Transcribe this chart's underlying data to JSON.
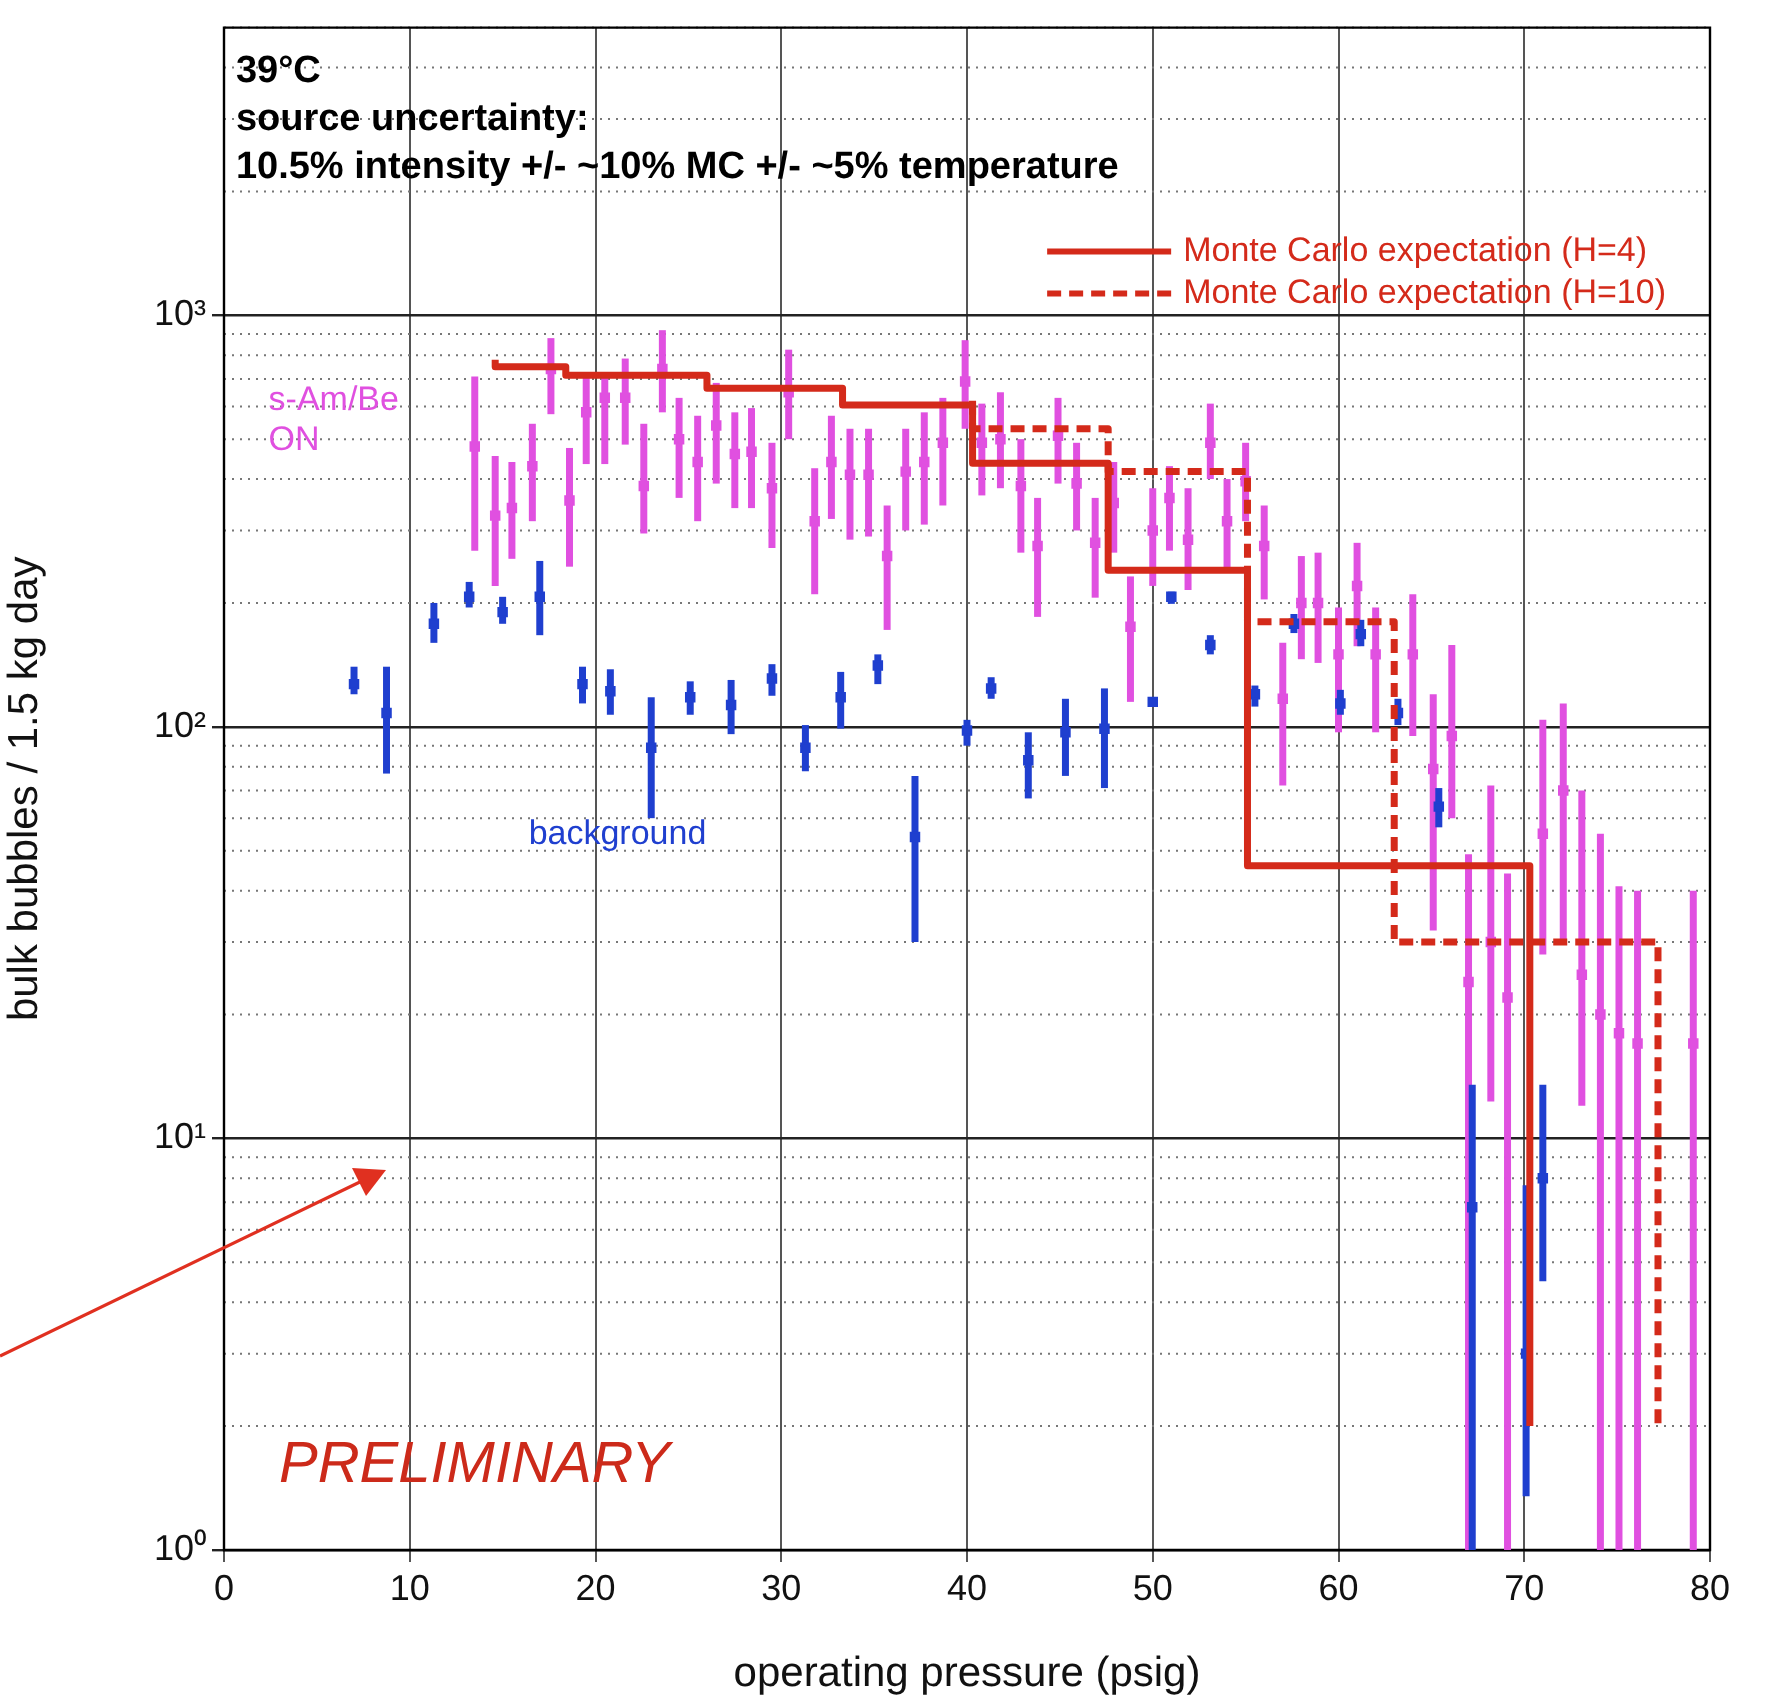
{
  "chart_data": {
    "type": "scatter",
    "xlabel": "operating pressure (psig)",
    "ylabel": "bulk bubbles / 1.5 kg day",
    "annotations": [
      "39°C",
      "source uncertainty:",
      "10.5% intensity +/- ~10% MC +/- ~5% temperature",
      "PRELIMINARY"
    ],
    "xlim": [
      0,
      80
    ],
    "xticks": [
      0,
      10,
      20,
      30,
      40,
      50,
      60,
      70,
      80
    ],
    "ylim": [
      1,
      5000
    ],
    "yticks": [
      {
        "value": 1,
        "label": "10⁰"
      },
      {
        "value": 10,
        "label": "10¹"
      },
      {
        "value": 100,
        "label": "10²"
      },
      {
        "value": 1000,
        "label": "10³"
      }
    ],
    "log": true,
    "grid": true,
    "legend": "top right",
    "series": [
      {
        "name": "s-Am/Be ON",
        "marker": "square",
        "color": "#e050e0",
        "x": [
          13.5,
          14.6,
          15.5,
          16.6,
          17.6,
          18.6,
          19.5,
          20.5,
          21.6,
          22.6,
          23.6,
          24.5,
          25.5,
          26.5,
          27.5,
          28.4,
          29.5,
          30.4,
          31.8,
          32.7,
          33.7,
          34.7,
          35.7,
          36.7,
          37.7,
          38.7,
          39.9,
          40.8,
          41.8,
          42.9,
          43.8,
          44.9,
          45.9,
          46.9,
          47.9,
          48.8,
          50.0,
          50.9,
          51.9,
          53.1,
          54.0,
          55.0,
          56.0,
          57.0,
          58.0,
          58.9,
          60.0,
          61.0,
          62.0,
          64.0,
          65.1,
          66.1,
          67.0,
          68.2,
          69.1,
          71.0,
          72.1,
          73.1,
          74.1,
          75.1,
          76.1,
          79.1
        ],
        "values": [
          480,
          326,
          340,
          430,
          740,
          355,
          581,
          630,
          630,
          385,
          740,
          500,
          440,
          540,
          460,
          466,
          380,
          650,
          316,
          440,
          410,
          410,
          260,
          417,
          440,
          490,
          690,
          490,
          500,
          385,
          275,
          510,
          390,
          280,
          350,
          175,
          300,
          360,
          285,
          490,
          316,
          395,
          275,
          117,
          200,
          200,
          150,
          220,
          150,
          150,
          79,
          95,
          24,
          30,
          22,
          55,
          70,
          25,
          20,
          18,
          17,
          17
        ],
        "errors": [
          [
            268,
            710
          ],
          [
            220,
            455
          ],
          [
            256,
            440
          ],
          [
            316,
            545
          ],
          [
            575,
            880
          ],
          [
            245,
            476
          ],
          [
            435,
            726
          ],
          [
            435,
            720
          ],
          [
            485,
            785
          ],
          [
            295,
            545
          ],
          [
            581,
            920
          ],
          [
            360,
            630
          ],
          [
            316,
            570
          ],
          [
            390,
            685
          ],
          [
            340,
            581
          ],
          [
            340,
            595
          ],
          [
            272,
            490
          ],
          [
            500,
            825
          ],
          [
            210,
            425
          ],
          [
            320,
            570
          ],
          [
            285,
            530
          ],
          [
            290,
            530
          ],
          [
            172,
            345
          ],
          [
            300,
            530
          ],
          [
            310,
            581
          ],
          [
            345,
            630
          ],
          [
            530,
            870
          ],
          [
            365,
            610
          ],
          [
            380,
            650
          ],
          [
            265,
            500
          ],
          [
            185,
            360
          ],
          [
            390,
            630
          ],
          [
            300,
            490
          ],
          [
            206,
            360
          ],
          [
            265,
            440
          ],
          [
            115,
            232
          ],
          [
            220,
            380
          ],
          [
            268,
            430
          ],
          [
            215,
            380
          ],
          [
            400,
            610
          ],
          [
            240,
            400
          ],
          [
            316,
            490
          ],
          [
            204,
            345
          ],
          [
            72,
            160
          ],
          [
            146,
            260
          ],
          [
            143,
            265
          ],
          [
            97,
            195
          ],
          [
            157,
            280
          ],
          [
            97,
            195
          ],
          [
            95,
            210
          ],
          [
            32,
            120
          ],
          [
            60,
            158
          ],
          [
            1,
            49
          ],
          [
            12.3,
            72
          ],
          [
            1,
            44
          ],
          [
            28,
            104
          ],
          [
            30,
            114
          ],
          [
            12,
            70
          ],
          [
            1,
            55
          ],
          [
            1,
            41
          ],
          [
            1,
            40
          ],
          [
            1,
            40
          ]
        ]
      },
      {
        "name": "background",
        "marker": "square",
        "color": "#1f3fcf",
        "x": [
          7.0,
          8.75,
          11.3,
          13.2,
          15.0,
          17.0,
          19.3,
          20.8,
          23.0,
          25.1,
          27.3,
          29.5,
          31.3,
          33.2,
          35.2,
          37.2,
          40.0,
          41.3,
          43.3,
          45.3,
          47.4,
          50.0,
          51.0,
          53.1,
          55.5,
          57.6,
          60.1,
          61.2,
          63.2,
          65.4,
          67.2,
          70.1,
          71.0
        ],
        "values": [
          127,
          108,
          178,
          207,
          190,
          207,
          127,
          122,
          89,
          118,
          113,
          131,
          89,
          118,
          141,
          54,
          98,
          124,
          83,
          97,
          99,
          115,
          207,
          158,
          120,
          178,
          114,
          168,
          108,
          64,
          6.8,
          3,
          8
        ],
        "errors": [
          [
            120,
            140
          ],
          [
            77,
            140
          ],
          [
            160,
            200
          ],
          [
            195,
            225
          ],
          [
            178,
            207
          ],
          [
            167,
            253
          ],
          [
            114,
            140
          ],
          [
            107,
            138
          ],
          [
            60,
            118
          ],
          [
            107,
            129
          ],
          [
            96,
            130
          ],
          [
            119,
            142
          ],
          [
            78,
            101
          ],
          [
            99,
            136
          ],
          [
            127,
            150
          ],
          [
            30,
            76
          ],
          [
            90,
            104
          ],
          [
            117,
            132
          ],
          [
            67,
            97
          ],
          [
            76,
            117
          ],
          [
            71,
            124
          ],
          [
            112,
            117
          ],
          [
            199,
            213
          ],
          [
            150,
            167
          ],
          [
            112,
            126
          ],
          [
            169,
            188
          ],
          [
            107,
            123
          ],
          [
            157,
            182
          ],
          [
            101,
            117
          ],
          [
            57,
            71
          ],
          [
            1,
            13.5
          ],
          [
            1.35,
            7.7
          ],
          [
            4.5,
            13.5
          ]
        ]
      },
      {
        "name": "Monte Carlo expectation (H=4)",
        "type": "step",
        "color": "#d42a1a",
        "line_style": "solid",
        "x": [
          14.6,
          18.4,
          26.0,
          33.3,
          40.3,
          47.6,
          55.1,
          62.9,
          70.3,
          70.3
        ],
        "values": [
          780,
          750,
          715,
          665,
          605,
          437,
          240,
          46,
          46,
          2
        ]
      },
      {
        "name": "Monte Carlo expectation (H=10)",
        "type": "step",
        "color": "#d42a1a",
        "line_style": "dashed",
        "x": [
          40.3,
          47.6,
          55.1,
          63.0,
          70.4,
          77.2,
          77.2
        ],
        "values": [
          620,
          530,
          417,
          180,
          30,
          30,
          2
        ]
      }
    ]
  }
}
